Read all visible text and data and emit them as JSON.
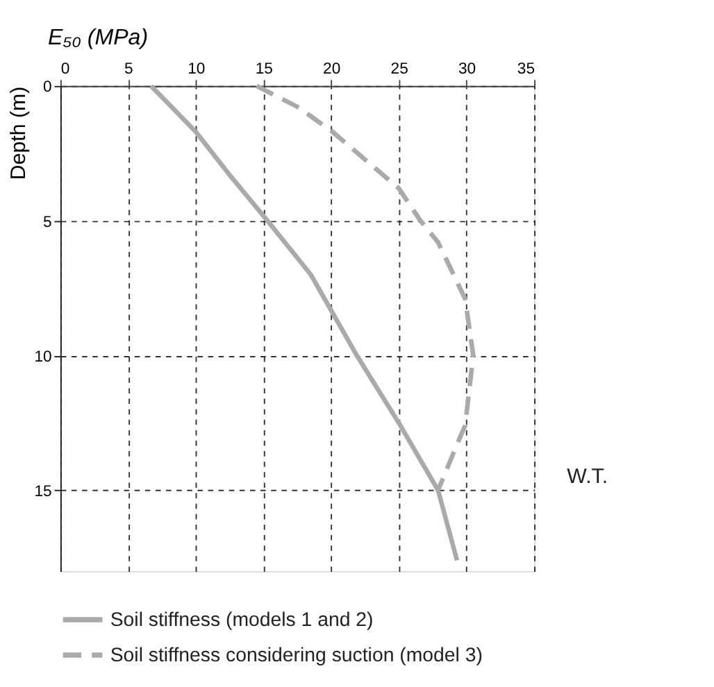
{
  "chart_data": {
    "type": "line",
    "xlabel": "E₅₀ (MPa)",
    "ylabel": "Depth (m)",
    "xlim": [
      0,
      35
    ],
    "xticks": [
      0,
      5,
      10,
      15,
      20,
      25,
      30,
      35
    ],
    "ylim": [
      18,
      0
    ],
    "yticks": [
      0,
      5,
      10,
      15
    ],
    "grid": true,
    "legend": "bottom",
    "series": [
      {
        "name": "Soil stiffness (models 1 and 2)",
        "color": "#aaaaaa",
        "line_style": "solid",
        "x": [
          6.7,
          10,
          12.5,
          15.3,
          18.5,
          21.9,
          25,
          27.9,
          29.3
        ],
        "values": [
          0,
          1.7,
          3.3,
          5,
          7,
          10,
          12.5,
          15,
          17.6
        ]
      },
      {
        "name": "Soil stiffness considering suction (model 3)",
        "color": "#aaaaaa",
        "line_style": "dashed",
        "x": [
          14.5,
          17.6,
          20.1,
          25,
          26.6,
          27.9,
          29.9,
          30.5,
          29.9,
          29.3,
          27.9
        ],
        "values": [
          0,
          0.8,
          1.7,
          3.8,
          5,
          5.8,
          7.9,
          10,
          12.6,
          13.3,
          15
        ]
      }
    ],
    "annotations": [
      "W.T."
    ]
  }
}
